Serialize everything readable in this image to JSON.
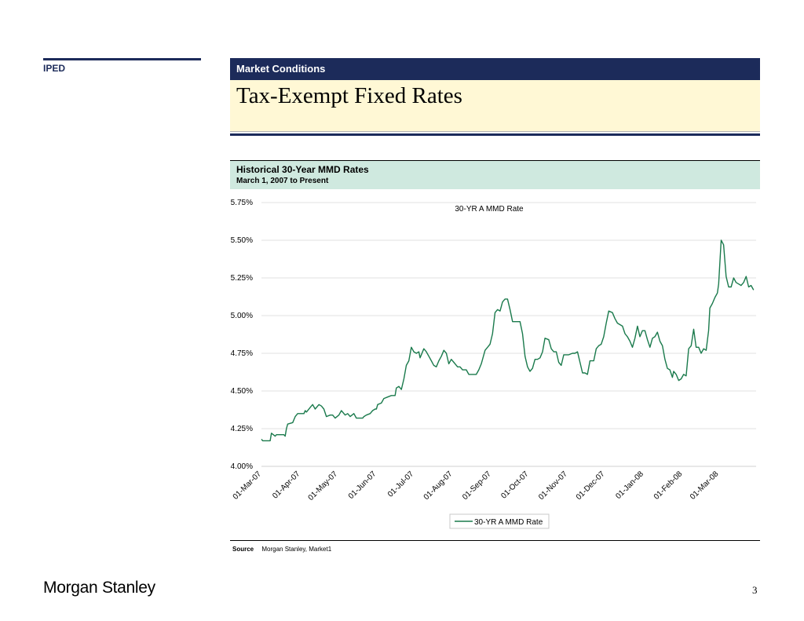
{
  "sidebar": {
    "section": "IPED"
  },
  "header": {
    "section_title": "Market Conditions",
    "page_title": "Tax-Exempt Fixed Rates"
  },
  "chart_header": {
    "title": "Historical 30-Year MMD Rates",
    "subtitle": "March 1, 2007 to Present"
  },
  "chart_data": {
    "type": "line",
    "title": "30-YR A MMD Rate",
    "xlabel": "",
    "ylabel": "",
    "x_start": "2007-03-01",
    "x_end": "2008-03-31",
    "ylim": [
      4.0,
      5.75
    ],
    "yticks": [
      "4.00%",
      "4.25%",
      "4.50%",
      "4.75%",
      "5.00%",
      "5.25%",
      "5.50%",
      "5.75%"
    ],
    "xticks": [
      "01-Mar-07",
      "01-Apr-07",
      "01-May-07",
      "01-Jun-07",
      "01-Jul-07",
      "01-Aug-07",
      "01-Sep-07",
      "01-Oct-07",
      "01-Nov-07",
      "01-Dec-07",
      "01-Jan-08",
      "01-Feb-08",
      "01-Mar-08"
    ],
    "grid": true,
    "legend_position": "bottom-center",
    "series": [
      {
        "name": "30-YR A MMD Rate",
        "color": "#1a7a4c",
        "points": [
          [
            "2007-03-01",
            4.18
          ],
          [
            "2007-03-02",
            4.17
          ],
          [
            "2007-03-08",
            4.17
          ],
          [
            "2007-03-09",
            4.22
          ],
          [
            "2007-03-12",
            4.2
          ],
          [
            "2007-03-13",
            4.21
          ],
          [
            "2007-03-19",
            4.21
          ],
          [
            "2007-03-20",
            4.2
          ],
          [
            "2007-03-21",
            4.25
          ],
          [
            "2007-03-22",
            4.28
          ],
          [
            "2007-03-26",
            4.29
          ],
          [
            "2007-03-28",
            4.33
          ],
          [
            "2007-03-30",
            4.35
          ],
          [
            "2007-04-02",
            4.35
          ],
          [
            "2007-04-04",
            4.35
          ],
          [
            "2007-04-05",
            4.37
          ],
          [
            "2007-04-06",
            4.36
          ],
          [
            "2007-04-09",
            4.39
          ],
          [
            "2007-04-11",
            4.41
          ],
          [
            "2007-04-13",
            4.38
          ],
          [
            "2007-04-16",
            4.41
          ],
          [
            "2007-04-18",
            4.4
          ],
          [
            "2007-04-20",
            4.38
          ],
          [
            "2007-04-22",
            4.33
          ],
          [
            "2007-04-25",
            4.34
          ],
          [
            "2007-04-27",
            4.34
          ],
          [
            "2007-04-29",
            4.32
          ],
          [
            "2007-05-02",
            4.34
          ],
          [
            "2007-05-04",
            4.37
          ],
          [
            "2007-05-07",
            4.34
          ],
          [
            "2007-05-09",
            4.35
          ],
          [
            "2007-05-11",
            4.33
          ],
          [
            "2007-05-14",
            4.35
          ],
          [
            "2007-05-16",
            4.32
          ],
          [
            "2007-05-18",
            4.32
          ],
          [
            "2007-05-21",
            4.32
          ],
          [
            "2007-05-22",
            4.33
          ],
          [
            "2007-05-24",
            4.34
          ],
          [
            "2007-05-27",
            4.35
          ],
          [
            "2007-05-29",
            4.37
          ],
          [
            "2007-05-31",
            4.38
          ],
          [
            "2007-06-01",
            4.38
          ],
          [
            "2007-06-02",
            4.41
          ],
          [
            "2007-06-05",
            4.42
          ],
          [
            "2007-06-07",
            4.45
          ],
          [
            "2007-06-10",
            4.46
          ],
          [
            "2007-06-13",
            4.47
          ],
          [
            "2007-06-16",
            4.47
          ],
          [
            "2007-06-17",
            4.52
          ],
          [
            "2007-06-19",
            4.53
          ],
          [
            "2007-06-21",
            4.51
          ],
          [
            "2007-06-23",
            4.58
          ],
          [
            "2007-06-25",
            4.67
          ],
          [
            "2007-06-27",
            4.7
          ],
          [
            "2007-06-29",
            4.79
          ],
          [
            "2007-07-01",
            4.76
          ],
          [
            "2007-07-03",
            4.75
          ],
          [
            "2007-07-05",
            4.76
          ],
          [
            "2007-07-06",
            4.72
          ],
          [
            "2007-07-09",
            4.78
          ],
          [
            "2007-07-11",
            4.76
          ],
          [
            "2007-07-13",
            4.73
          ],
          [
            "2007-07-15",
            4.7
          ],
          [
            "2007-07-17",
            4.67
          ],
          [
            "2007-07-19",
            4.66
          ],
          [
            "2007-07-21",
            4.7
          ],
          [
            "2007-07-23",
            4.73
          ],
          [
            "2007-07-25",
            4.77
          ],
          [
            "2007-07-27",
            4.75
          ],
          [
            "2007-07-29",
            4.68
          ],
          [
            "2007-07-31",
            4.71
          ],
          [
            "2007-08-02",
            4.69
          ],
          [
            "2007-08-05",
            4.66
          ],
          [
            "2007-08-07",
            4.66
          ],
          [
            "2007-08-09",
            4.64
          ],
          [
            "2007-08-12",
            4.64
          ],
          [
            "2007-08-14",
            4.61
          ],
          [
            "2007-08-17",
            4.61
          ],
          [
            "2007-08-20",
            4.61
          ],
          [
            "2007-08-22",
            4.64
          ],
          [
            "2007-08-24",
            4.68
          ],
          [
            "2007-08-27",
            4.77
          ],
          [
            "2007-08-29",
            4.79
          ],
          [
            "2007-08-31",
            4.81
          ],
          [
            "2007-09-02",
            4.88
          ],
          [
            "2007-09-04",
            5.02
          ],
          [
            "2007-09-06",
            5.04
          ],
          [
            "2007-09-08",
            5.03
          ],
          [
            "2007-09-10",
            5.09
          ],
          [
            "2007-09-12",
            5.11
          ],
          [
            "2007-09-14",
            5.11
          ],
          [
            "2007-09-16",
            5.04
          ],
          [
            "2007-09-18",
            4.96
          ],
          [
            "2007-09-20",
            4.96
          ],
          [
            "2007-09-22",
            4.96
          ],
          [
            "2007-09-24",
            4.96
          ],
          [
            "2007-09-26",
            4.88
          ],
          [
            "2007-09-28",
            4.73
          ],
          [
            "2007-09-30",
            4.66
          ],
          [
            "2007-10-02",
            4.63
          ],
          [
            "2007-10-04",
            4.65
          ],
          [
            "2007-10-06",
            4.71
          ],
          [
            "2007-10-08",
            4.71
          ],
          [
            "2007-10-10",
            4.72
          ],
          [
            "2007-10-12",
            4.76
          ],
          [
            "2007-10-14",
            4.85
          ],
          [
            "2007-10-17",
            4.84
          ],
          [
            "2007-10-19",
            4.78
          ],
          [
            "2007-10-21",
            4.76
          ],
          [
            "2007-10-23",
            4.76
          ],
          [
            "2007-10-25",
            4.69
          ],
          [
            "2007-10-27",
            4.67
          ],
          [
            "2007-10-29",
            4.74
          ],
          [
            "2007-10-31",
            4.74
          ],
          [
            "2007-11-02",
            4.74
          ],
          [
            "2007-11-05",
            4.75
          ],
          [
            "2007-11-07",
            4.75
          ],
          [
            "2007-11-09",
            4.76
          ],
          [
            "2007-11-11",
            4.69
          ],
          [
            "2007-11-13",
            4.62
          ],
          [
            "2007-11-15",
            4.62
          ],
          [
            "2007-11-17",
            4.61
          ],
          [
            "2007-11-19",
            4.7
          ],
          [
            "2007-11-22",
            4.7
          ],
          [
            "2007-11-24",
            4.78
          ],
          [
            "2007-11-26",
            4.8
          ],
          [
            "2007-11-28",
            4.81
          ],
          [
            "2007-11-30",
            4.86
          ],
          [
            "2007-12-02",
            4.95
          ],
          [
            "2007-12-04",
            5.03
          ],
          [
            "2007-12-07",
            5.02
          ],
          [
            "2007-12-09",
            4.98
          ],
          [
            "2007-12-11",
            4.95
          ],
          [
            "2007-12-13",
            4.94
          ],
          [
            "2007-12-15",
            4.93
          ],
          [
            "2007-12-17",
            4.88
          ],
          [
            "2007-12-19",
            4.86
          ],
          [
            "2007-12-21",
            4.83
          ],
          [
            "2007-12-23",
            4.79
          ],
          [
            "2007-12-25",
            4.85
          ],
          [
            "2007-12-27",
            4.93
          ],
          [
            "2007-12-29",
            4.86
          ],
          [
            "2007-12-31",
            4.9
          ],
          [
            "2008-01-02",
            4.9
          ],
          [
            "2008-01-04",
            4.84
          ],
          [
            "2008-01-06",
            4.79
          ],
          [
            "2008-01-08",
            4.85
          ],
          [
            "2008-01-10",
            4.86
          ],
          [
            "2008-01-12",
            4.89
          ],
          [
            "2008-01-14",
            4.83
          ],
          [
            "2008-01-16",
            4.8
          ],
          [
            "2008-01-18",
            4.71
          ],
          [
            "2008-01-20",
            4.65
          ],
          [
            "2008-01-22",
            4.64
          ],
          [
            "2008-01-24",
            4.59
          ],
          [
            "2008-01-25",
            4.63
          ],
          [
            "2008-01-27",
            4.61
          ],
          [
            "2008-01-29",
            4.57
          ],
          [
            "2008-01-31",
            4.58
          ],
          [
            "2008-02-02",
            4.61
          ],
          [
            "2008-02-04",
            4.6
          ],
          [
            "2008-02-06",
            4.78
          ],
          [
            "2008-02-08",
            4.8
          ],
          [
            "2008-02-10",
            4.91
          ],
          [
            "2008-02-12",
            4.79
          ],
          [
            "2008-02-14",
            4.79
          ],
          [
            "2008-02-16",
            4.75
          ],
          [
            "2008-02-18",
            4.78
          ],
          [
            "2008-02-20",
            4.77
          ],
          [
            "2008-02-22",
            4.9
          ],
          [
            "2008-02-23",
            5.05
          ],
          [
            "2008-02-25",
            5.08
          ],
          [
            "2008-02-27",
            5.12
          ],
          [
            "2008-02-29",
            5.15
          ],
          [
            "2008-03-01",
            5.21
          ],
          [
            "2008-03-03",
            5.5
          ],
          [
            "2008-03-05",
            5.47
          ],
          [
            "2008-03-07",
            5.26
          ],
          [
            "2008-03-09",
            5.19
          ],
          [
            "2008-03-11",
            5.19
          ],
          [
            "2008-03-13",
            5.25
          ],
          [
            "2008-03-15",
            5.22
          ],
          [
            "2008-03-17",
            5.21
          ],
          [
            "2008-03-19",
            5.2
          ],
          [
            "2008-03-21",
            5.22
          ],
          [
            "2008-03-23",
            5.26
          ],
          [
            "2008-03-25",
            5.19
          ],
          [
            "2008-03-27",
            5.2
          ],
          [
            "2008-03-29",
            5.17
          ]
        ]
      }
    ]
  },
  "footer": {
    "source_label": "Source",
    "source_text": "Morgan Stanley, Market1",
    "brand": "Morgan Stanley",
    "page_number": "3"
  }
}
